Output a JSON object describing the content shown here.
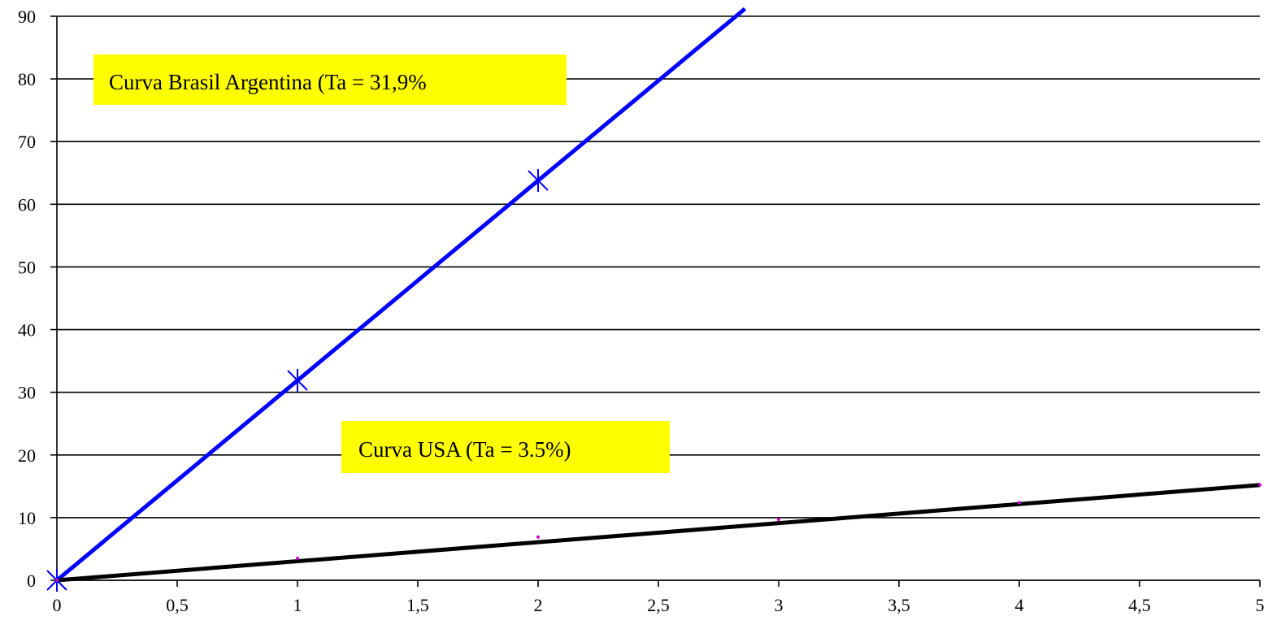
{
  "chart_data": {
    "type": "line",
    "title": "",
    "xlabel": "",
    "ylabel": "",
    "xlim": [
      0,
      5
    ],
    "ylim": [
      0,
      90
    ],
    "x_ticks": [
      "0",
      "0,5",
      "1",
      "1,5",
      "2",
      "2,5",
      "3",
      "3,5",
      "4",
      "4,5",
      "5"
    ],
    "y_ticks": [
      "0",
      "10",
      "20",
      "30",
      "40",
      "50",
      "60",
      "70",
      "80",
      "90"
    ],
    "x_tick_values": [
      0,
      0.5,
      1,
      1.5,
      2,
      2.5,
      3,
      3.5,
      4,
      4.5,
      5
    ],
    "y_tick_values": [
      0,
      10,
      20,
      30,
      40,
      50,
      60,
      70,
      80,
      90
    ],
    "grid": {
      "horizontal": true,
      "vertical": false
    },
    "legend": "none",
    "series": [
      {
        "color": "#0000ff",
        "marker": "asterisk",
        "trend": {
          "from": [
            0,
            0
          ],
          "to": [
            2.86,
            91.2
          ]
        },
        "points": [
          {
            "x": 0,
            "y": 0
          },
          {
            "x": 1,
            "y": 31.9
          },
          {
            "x": 2,
            "y": 63.8
          }
        ]
      },
      {
        "color": "#000000",
        "marker_color": "#cc00cc",
        "marker": "dot",
        "trend": {
          "from": [
            0,
            0
          ],
          "to": [
            5,
            15.2
          ]
        },
        "points": [
          {
            "x": 0,
            "y": 0
          },
          {
            "x": 1,
            "y": 3.5
          },
          {
            "x": 2,
            "y": 6.9
          },
          {
            "x": 3,
            "y": 9.7
          },
          {
            "x": 4,
            "y": 12.4
          },
          {
            "x": 5,
            "y": 15.2
          }
        ]
      }
    ],
    "annotations": [
      {
        "text": "Curva Brasil Argentina (Ta = 31,9%",
        "background": "#ffff00"
      },
      {
        "text": "Curva USA (Ta = 3.5%)",
        "background": "#ffff00"
      }
    ]
  }
}
